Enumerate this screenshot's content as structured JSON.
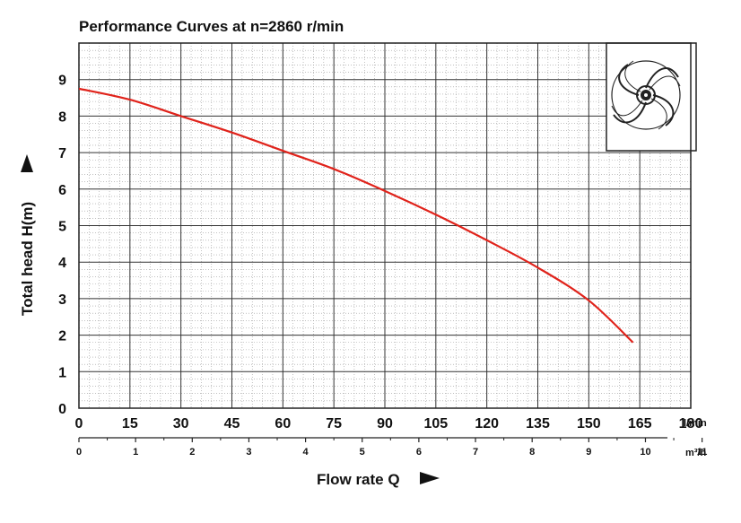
{
  "chart_data": {
    "type": "line",
    "title": "Performance Curves at n=2860 r/min",
    "ylabel": "Total head  H(m)",
    "xlabel": "Flow rate Q",
    "xunit_primary": "l/min",
    "xunit_secondary": "m³/h",
    "ylim": [
      0,
      10
    ],
    "xlim": [
      0,
      180
    ],
    "y_ticks": [
      "0",
      "1",
      "2",
      "3",
      "4",
      "5",
      "6",
      "7",
      "8",
      "9"
    ],
    "x_ticks_primary": [
      "0",
      "15",
      "30",
      "45",
      "60",
      "75",
      "90",
      "105",
      "120",
      "135",
      "150",
      "165",
      "180"
    ],
    "x_ticks_secondary": [
      "0",
      "1",
      "2",
      "3",
      "4",
      "5",
      "6",
      "7",
      "8",
      "9",
      "10",
      "11"
    ],
    "grid": true,
    "series": [
      {
        "color": "#e0231b",
        "x": [
          0,
          15,
          30,
          45,
          60,
          75,
          90,
          105,
          120,
          135,
          150,
          163
        ],
        "y": [
          8.75,
          8.45,
          8.0,
          7.55,
          7.05,
          6.55,
          5.95,
          5.3,
          4.6,
          3.85,
          2.95,
          1.8
        ]
      }
    ],
    "inset_image": "impeller-icon"
  }
}
